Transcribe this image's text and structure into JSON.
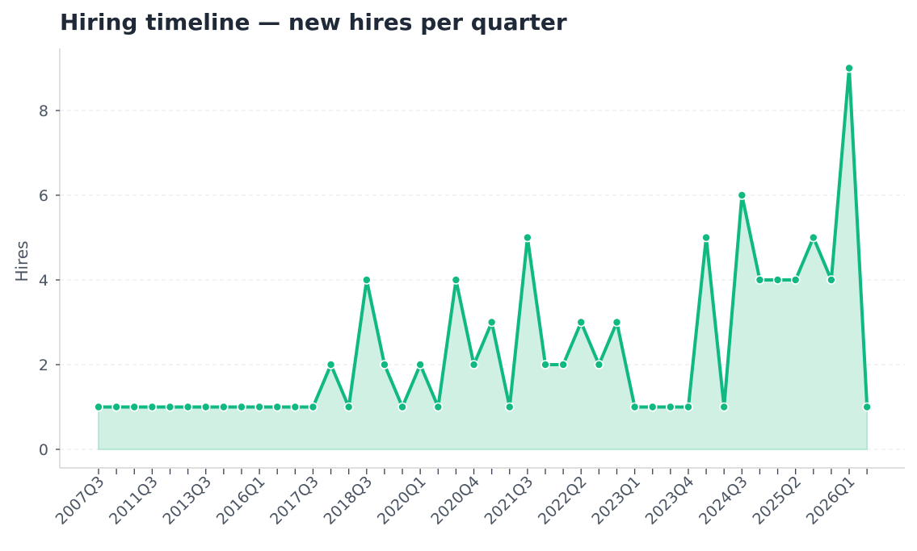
{
  "chart_data": {
    "type": "line",
    "title": "Hiring timeline — new hires per quarter",
    "xlabel": "",
    "ylabel": "Hires",
    "ylim": [
      0,
      9
    ],
    "yticks": [
      0,
      2,
      4,
      6,
      8
    ],
    "x_tick_labels": [
      "2007Q3",
      "2011Q3",
      "2013Q3",
      "2016Q1",
      "2017Q3",
      "2018Q3",
      "2020Q1",
      "2020Q4",
      "2021Q3",
      "2022Q2",
      "2023Q1",
      "2023Q4",
      "2024Q3",
      "2025Q2",
      "2026Q1"
    ],
    "grid": true,
    "filled_area": true,
    "colors": {
      "line": "#10b981",
      "fill": "#d1f0e4",
      "marker_edge": "#ffffff"
    },
    "values": [
      1,
      1,
      1,
      1,
      1,
      1,
      1,
      1,
      1,
      1,
      1,
      1,
      1,
      2,
      1,
      4,
      2,
      1,
      2,
      1,
      4,
      2,
      3,
      1,
      5,
      2,
      2,
      3,
      2,
      3,
      1,
      1,
      1,
      1,
      5,
      1,
      6,
      4,
      4,
      4,
      5,
      4,
      9,
      1
    ]
  }
}
